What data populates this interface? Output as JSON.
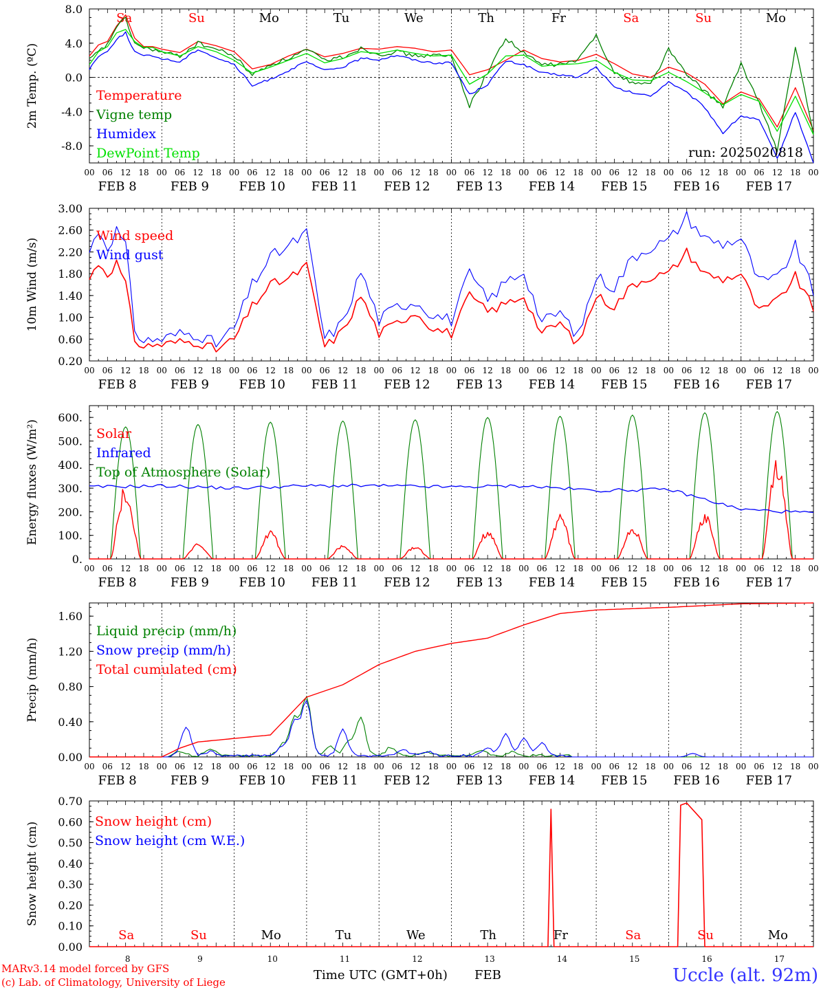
{
  "colors": {
    "red": "#ff0000",
    "green": "#008000",
    "blue": "#0000ff",
    "lightgreen": "#00e000",
    "uccle": "#3333ff"
  },
  "dates": [
    "FEB  8",
    "FEB  9",
    "FEB 10",
    "FEB 11",
    "FEB 12",
    "FEB 13",
    "FEB 14",
    "FEB 15",
    "FEB 16",
    "FEB 17"
  ],
  "dates_short": [
    "8",
    "9",
    "10",
    "11",
    "12",
    "13",
    "14",
    "15",
    "16",
    "17"
  ],
  "weekdays": [
    {
      "label": "Sa",
      "color": "#ff0000"
    },
    {
      "label": "Su",
      "color": "#ff0000"
    },
    {
      "label": "Mo",
      "color": "#000000"
    },
    {
      "label": "Tu",
      "color": "#000000"
    },
    {
      "label": "We",
      "color": "#000000"
    },
    {
      "label": "Th",
      "color": "#000000"
    },
    {
      "label": "Fr",
      "color": "#000000"
    },
    {
      "label": "Sa",
      "color": "#ff0000"
    },
    {
      "label": "Su",
      "color": "#ff0000"
    },
    {
      "label": "Mo",
      "color": "#000000"
    }
  ],
  "hour_ticks": [
    "00",
    "06",
    "12",
    "18"
  ],
  "footer": {
    "model": "MARv3.14 model forced by GFS",
    "copyright": "(c) Lab. of Climatology, University of Liege",
    "xlabel": "Time UTC (GMT+0h)",
    "month": "FEB",
    "station": "Uccle (alt. 92m)"
  },
  "chart_data": [
    {
      "type": "line",
      "ylabel": "2m Temp. (ºC)",
      "yticks": [
        "8.0",
        "4.0",
        "0.0",
        "-4.0",
        "-8.0"
      ],
      "ylim": [
        -10,
        8
      ],
      "annotation": "run: 2025020818",
      "x_hours": [
        0,
        3,
        6,
        9,
        12,
        15,
        18,
        21,
        24,
        30,
        36,
        42,
        48,
        54,
        60,
        66,
        72,
        78,
        84,
        90,
        96,
        102,
        108,
        114,
        120,
        126,
        132,
        138,
        144,
        150,
        156,
        162,
        168,
        174,
        180,
        186,
        192,
        198,
        204,
        210,
        216,
        222,
        228,
        234,
        240
      ],
      "series": [
        {
          "name": "Temperature",
          "color": "#ff0000",
          "values": [
            2.5,
            3.8,
            4.2,
            6.0,
            7.3,
            4.6,
            3.6,
            3.6,
            3.3,
            2.9,
            4.2,
            3.7,
            3.0,
            1.0,
            1.5,
            2.5,
            3.3,
            2.4,
            2.8,
            3.4,
            3.3,
            3.6,
            3.4,
            3.0,
            3.2,
            0.3,
            0.9,
            2.0,
            3.2,
            2.2,
            1.8,
            2.0,
            2.7,
            1.6,
            0.4,
            0.0,
            1.2,
            0.5,
            -0.8,
            -3.1,
            -1.7,
            -2.5,
            -5.8,
            -1.2,
            -6.2
          ]
        },
        {
          "name": "Vigne temp",
          "color": "#008000",
          "values": [
            2.0,
            3.0,
            3.8,
            6.0,
            6.8,
            4.0,
            3.4,
            3.3,
            2.9,
            2.5,
            4.0,
            3.3,
            2.5,
            0.3,
            1.5,
            2.2,
            3.2,
            2.0,
            2.4,
            3.4,
            2.7,
            3.0,
            2.5,
            2.6,
            2.4,
            -3.3,
            0.6,
            4.6,
            2.8,
            1.5,
            1.5,
            2.0,
            5.0,
            0.5,
            -0.6,
            -0.8,
            3.3,
            0.3,
            -1.6,
            -3.4,
            1.5,
            -2.9,
            -8.6,
            3.5,
            -6.6
          ]
        },
        {
          "name": "Humidex",
          "color": "#0000ff",
          "values": [
            1.0,
            2.5,
            3.0,
            4.5,
            5.2,
            3.0,
            2.5,
            2.5,
            2.2,
            1.8,
            3.3,
            2.3,
            1.5,
            -1.0,
            -0.2,
            0.8,
            1.8,
            0.8,
            1.2,
            2.2,
            2.1,
            2.6,
            2.0,
            1.7,
            1.7,
            -2.0,
            -0.8,
            1.9,
            1.5,
            0.5,
            0.3,
            0.0,
            1.2,
            -1.2,
            -1.8,
            -2.2,
            -0.5,
            -1.8,
            -3.5,
            -6.5,
            -4.5,
            -5.0,
            -9.5,
            -4.0,
            -10.0
          ]
        },
        {
          "name": "DewPoint Temp",
          "color": "#00e000",
          "values": [
            1.5,
            3.0,
            3.6,
            5.2,
            5.6,
            4.2,
            3.5,
            3.5,
            3.0,
            2.5,
            3.6,
            3.0,
            2.0,
            0.5,
            1.2,
            2.0,
            2.8,
            1.7,
            2.2,
            3.0,
            2.8,
            3.2,
            2.8,
            2.5,
            2.6,
            -0.8,
            0.4,
            2.5,
            2.6,
            1.3,
            1.5,
            1.6,
            2.0,
            0.6,
            -0.3,
            -0.4,
            0.6,
            -0.5,
            -1.8,
            -3.2,
            -2.0,
            -2.8,
            -6.3,
            -2.2,
            -6.7
          ]
        }
      ]
    },
    {
      "type": "line",
      "ylabel": "10m Wind (m/s)",
      "yticks": [
        "3.00",
        "2.60",
        "2.20",
        "1.80",
        "1.40",
        "1.00",
        "0.60",
        "0.20"
      ],
      "ylim": [
        0.2,
        3.0
      ],
      "x_hours": [
        0,
        3,
        6,
        9,
        12,
        15,
        18,
        21,
        24,
        30,
        36,
        42,
        48,
        54,
        60,
        66,
        72,
        78,
        84,
        90,
        96,
        102,
        108,
        114,
        120,
        126,
        132,
        138,
        144,
        150,
        156,
        162,
        168,
        174,
        180,
        186,
        192,
        198,
        204,
        210,
        216,
        222,
        228,
        234,
        240
      ],
      "series": [
        {
          "name": "Wind speed",
          "color": "#ff0000",
          "values": [
            1.7,
            2.0,
            1.8,
            2.0,
            1.6,
            0.6,
            0.45,
            0.5,
            0.5,
            0.55,
            0.55,
            0.4,
            0.6,
            1.2,
            1.6,
            1.7,
            1.95,
            0.45,
            0.75,
            1.4,
            0.7,
            0.9,
            1.1,
            0.8,
            0.7,
            1.4,
            1.1,
            1.25,
            1.4,
            0.7,
            0.9,
            0.5,
            1.4,
            1.2,
            1.6,
            1.75,
            1.8,
            2.2,
            1.8,
            1.7,
            1.8,
            1.1,
            1.3,
            1.75,
            1.15
          ]
        },
        {
          "name": "Wind gust",
          "color": "#0000ff",
          "values": [
            2.2,
            2.6,
            2.3,
            2.6,
            2.3,
            0.8,
            0.55,
            0.6,
            0.6,
            0.7,
            0.7,
            0.5,
            0.8,
            1.6,
            2.1,
            2.3,
            2.55,
            0.6,
            0.9,
            1.85,
            0.95,
            1.2,
            1.3,
            1.05,
            0.95,
            1.8,
            1.3,
            1.65,
            1.85,
            0.9,
            1.1,
            0.65,
            1.75,
            1.55,
            2.1,
            2.3,
            2.4,
            2.85,
            2.45,
            2.35,
            2.45,
            1.65,
            1.7,
            2.3,
            1.45
          ]
        }
      ]
    },
    {
      "type": "line",
      "ylabel": "Energy fluxes (W/m²)",
      "yticks": [
        "600.",
        "500.",
        "400.",
        "300.",
        "200.",
        "100.",
        "0."
      ],
      "ylim": [
        0,
        650
      ],
      "series": [
        {
          "name": "Solar",
          "color": "#ff0000",
          "daily_peaks": [
            320,
            65,
            120,
            60,
            55,
            125,
            190,
            145,
            205,
            440
          ]
        },
        {
          "name": "Infrared",
          "color": "#0000ff",
          "values": [
            305,
            310,
            300,
            310,
            310,
            305,
            310,
            290,
            295,
            210,
            195
          ],
          "x_days": [
            0,
            1,
            2,
            3,
            4,
            5,
            6,
            7,
            8,
            9,
            10
          ]
        },
        {
          "name": "Top of Atmosphere (Solar)",
          "color": "#008000",
          "daily_peaks": [
            560,
            570,
            580,
            585,
            590,
            600,
            605,
            610,
            620,
            625
          ]
        }
      ]
    },
    {
      "type": "line",
      "ylabel": "Precip (mm/h)",
      "yticks": [
        "1.60",
        "1.20",
        "0.80",
        "0.40",
        "0.00"
      ],
      "ylim": [
        0,
        1.75
      ],
      "x_hours": [
        0,
        24,
        30,
        36,
        48,
        60,
        72,
        84,
        96,
        108,
        120,
        132,
        144,
        156,
        168,
        192,
        216,
        240
      ],
      "series": [
        {
          "name": "Liquid precip (mm/h)",
          "color": "#008000"
        },
        {
          "name": "Snow precip (mm/h)",
          "color": "#0000ff"
        },
        {
          "name": "Total cumulated (cm)",
          "color": "#ff0000",
          "values": [
            0,
            0,
            0.1,
            0.17,
            0.21,
            0.25,
            0.68,
            0.82,
            1.05,
            1.2,
            1.29,
            1.35,
            1.5,
            1.63,
            1.67,
            1.7,
            1.74,
            1.75
          ]
        }
      ]
    },
    {
      "type": "line",
      "ylabel": "Snow height (cm)",
      "yticks": [
        "0.70",
        "0.60",
        "0.50",
        "0.40",
        "0.30",
        "0.20",
        "0.10",
        "0.00"
      ],
      "ylim": [
        0,
        0.7
      ],
      "series": [
        {
          "name": "Snow height (cm)",
          "color": "#ff0000",
          "values": [
            0,
            0,
            0.66,
            0,
            0,
            0.68,
            0.69,
            0.61,
            0,
            0
          ],
          "x_hours": [
            0,
            152,
            153,
            154,
            195,
            196,
            198,
            203,
            204,
            240
          ]
        },
        {
          "name": "Snow height (cm W.E.)",
          "color": "#0000ff"
        }
      ]
    }
  ]
}
